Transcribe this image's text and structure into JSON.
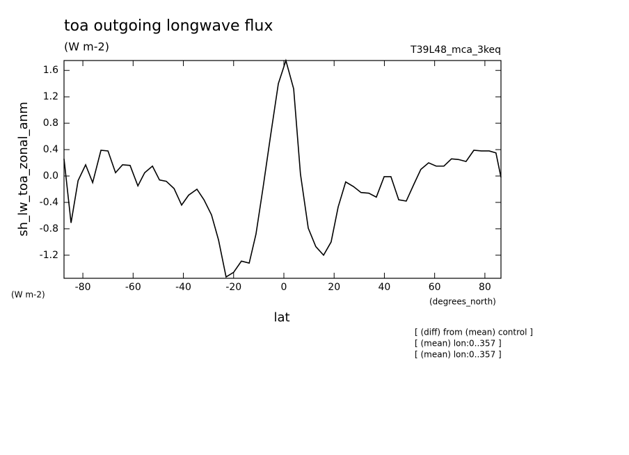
{
  "chart_data": {
    "type": "line",
    "title": "toa outgoing longwave flux",
    "subtitle": "(W m-2)",
    "dataset_label": "T39L48_mca_3keq",
    "y_label": "sh_lw_toa_zonal_anm",
    "y_units": "(W m-2)",
    "x_label": "lat",
    "x_units": "(degrees_north)",
    "annotations": [
      "[ (diff) from (mean) control ]",
      "[ (mean) lon:0..357 ]",
      "[ (mean) lon:0..357 ]"
    ],
    "color": "#000000",
    "x": [
      -87.5,
      -84.7,
      -81.9,
      -78.9,
      -76.1,
      -72.8,
      -70.0,
      -67.0,
      -64.2,
      -61.2,
      -58.1,
      -55.4,
      -52.3,
      -49.5,
      -46.8,
      -43.7,
      -40.7,
      -37.9,
      -34.6,
      -31.8,
      -28.8,
      -26.0,
      -23.0,
      -20.0,
      -16.9,
      -13.8,
      -11.1,
      -8.3,
      -5.3,
      -2.2,
      0.8,
      3.9,
      6.6,
      9.7,
      12.7,
      15.8,
      18.8,
      21.6,
      24.6,
      27.7,
      30.7,
      33.8,
      36.8,
      39.9,
      42.6,
      45.7,
      48.7,
      51.8,
      54.5,
      57.6,
      60.6,
      63.7,
      66.7,
      69.5,
      72.5,
      75.6,
      78.6,
      81.7,
      84.4,
      86.4
    ],
    "values": [
      0.26,
      -0.71,
      -0.07,
      0.17,
      -0.1,
      0.39,
      0.38,
      0.05,
      0.17,
      0.16,
      -0.15,
      0.05,
      0.15,
      -0.06,
      -0.08,
      -0.19,
      -0.44,
      -0.29,
      -0.2,
      -0.36,
      -0.59,
      -0.97,
      -1.53,
      -1.46,
      -1.29,
      -1.32,
      -0.88,
      -0.18,
      0.61,
      1.4,
      1.75,
      1.32,
      0.03,
      -0.79,
      -1.07,
      -1.2,
      -1.0,
      -0.47,
      -0.09,
      -0.16,
      -0.25,
      -0.26,
      -0.32,
      -0.01,
      -0.01,
      -0.36,
      -0.38,
      -0.12,
      0.1,
      0.2,
      0.15,
      0.15,
      0.26,
      0.25,
      0.22,
      0.39,
      0.38,
      0.38,
      0.35,
      -0.02
    ],
    "xlim": [
      -87.5,
      86.4
    ],
    "ylim": [
      -1.55,
      1.75
    ],
    "xticks": [
      -80,
      -60,
      -40,
      -20,
      0,
      20,
      40,
      60,
      80
    ],
    "yticks": [
      -1.2,
      -0.8,
      -0.4,
      {
        "value": 0,
        "label": "0.0"
      },
      0.4,
      0.8,
      1.2,
      1.6
    ],
    "grid": false
  }
}
